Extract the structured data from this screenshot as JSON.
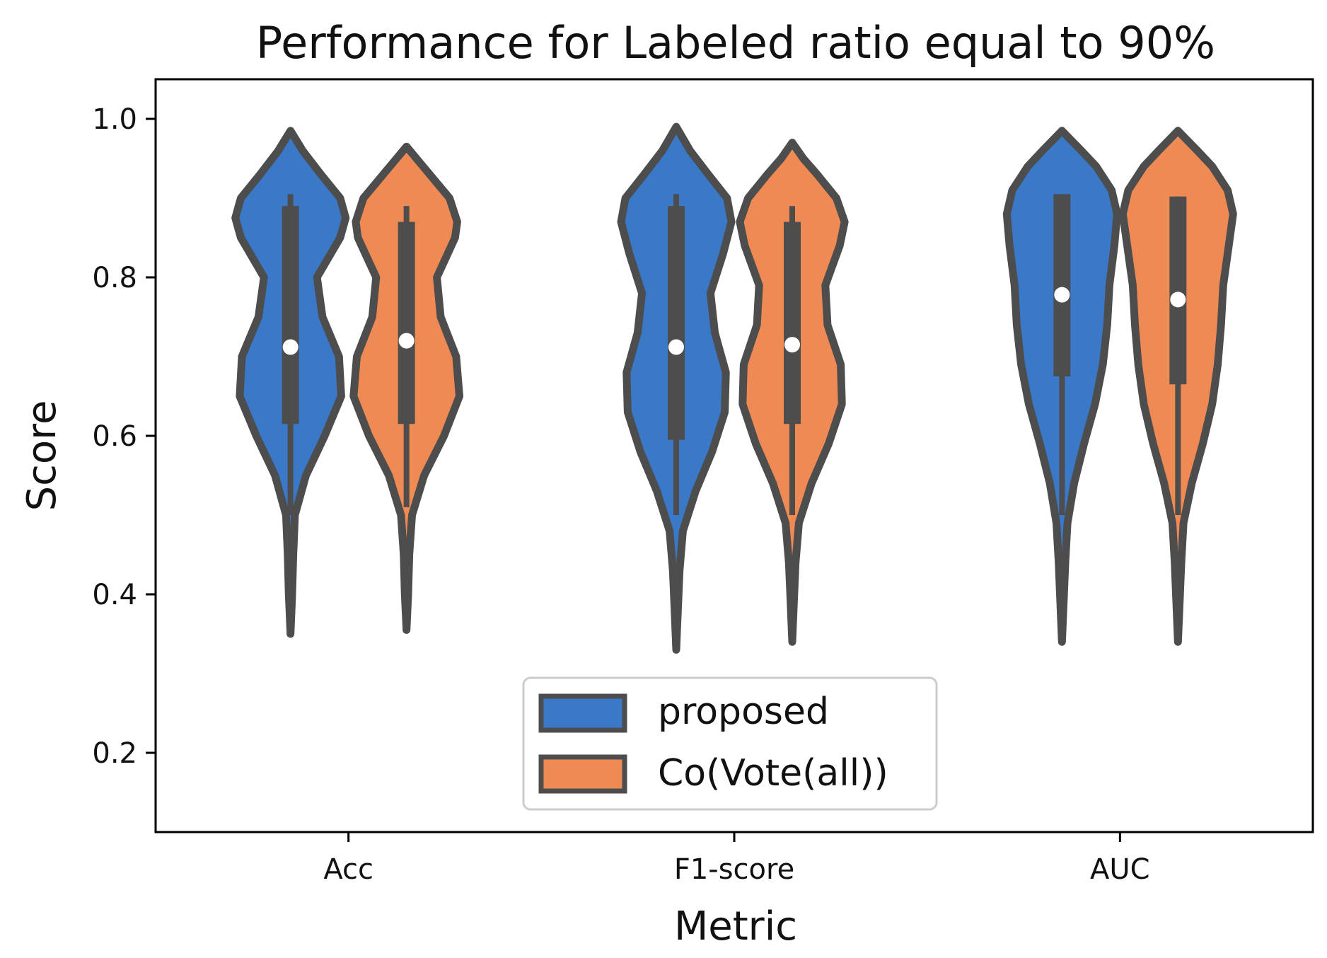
{
  "chart_data": {
    "type": "violin",
    "title": "Performance for Labeled ratio equal to 90%",
    "xlabel": "Metric",
    "ylabel": "Score",
    "categories": [
      "Acc",
      "F1-score",
      "AUC"
    ],
    "ylim": [
      0.1,
      1.05
    ],
    "yticks": [
      0.2,
      0.4,
      0.6,
      0.8,
      1.0
    ],
    "ytick_labels": [
      "0.2",
      "0.4",
      "0.6",
      "0.8",
      "1.0"
    ],
    "legend": {
      "position": "lower center"
    },
    "series": [
      {
        "name": "proposed",
        "color": "#3a78c8",
        "stats": [
          {
            "min": 0.35,
            "max": 0.985,
            "q1": 0.615,
            "median": 0.712,
            "q3": 0.89,
            "whisker_low": 0.5,
            "whisker_high": 0.905,
            "density": [
              [
                0.35,
                0.0
              ],
              [
                0.4,
                0.03
              ],
              [
                0.45,
                0.05
              ],
              [
                0.5,
                0.08
              ],
              [
                0.55,
                0.28
              ],
              [
                0.6,
                0.62
              ],
              [
                0.65,
                0.92
              ],
              [
                0.7,
                0.88
              ],
              [
                0.75,
                0.58
              ],
              [
                0.8,
                0.48
              ],
              [
                0.85,
                0.9
              ],
              [
                0.875,
                1.0
              ],
              [
                0.9,
                0.9
              ],
              [
                0.93,
                0.55
              ],
              [
                0.96,
                0.22
              ],
              [
                0.985,
                0.0
              ]
            ]
          },
          {
            "min": 0.33,
            "max": 0.99,
            "q1": 0.595,
            "median": 0.712,
            "q3": 0.89,
            "whisker_low": 0.5,
            "whisker_high": 0.905,
            "density": [
              [
                0.33,
                0.0
              ],
              [
                0.38,
                0.03
              ],
              [
                0.43,
                0.06
              ],
              [
                0.48,
                0.12
              ],
              [
                0.53,
                0.35
              ],
              [
                0.58,
                0.65
              ],
              [
                0.63,
                0.88
              ],
              [
                0.68,
                0.9
              ],
              [
                0.73,
                0.7
              ],
              [
                0.78,
                0.62
              ],
              [
                0.83,
                0.85
              ],
              [
                0.87,
                1.0
              ],
              [
                0.9,
                0.92
              ],
              [
                0.93,
                0.58
              ],
              [
                0.96,
                0.25
              ],
              [
                0.99,
                0.0
              ]
            ]
          },
          {
            "min": 0.34,
            "max": 0.985,
            "q1": 0.675,
            "median": 0.778,
            "q3": 0.905,
            "whisker_low": 0.5,
            "whisker_high": 0.905,
            "density": [
              [
                0.34,
                0.0
              ],
              [
                0.39,
                0.03
              ],
              [
                0.44,
                0.06
              ],
              [
                0.49,
                0.1
              ],
              [
                0.54,
                0.22
              ],
              [
                0.59,
                0.4
              ],
              [
                0.64,
                0.6
              ],
              [
                0.69,
                0.74
              ],
              [
                0.74,
                0.82
              ],
              [
                0.79,
                0.86
              ],
              [
                0.84,
                0.95
              ],
              [
                0.88,
                1.0
              ],
              [
                0.91,
                0.9
              ],
              [
                0.94,
                0.62
              ],
              [
                0.96,
                0.35
              ],
              [
                0.985,
                0.0
              ]
            ]
          }
        ]
      },
      {
        "name": "Co(Vote(all))",
        "color": "#ef8a55",
        "stats": [
          {
            "min": 0.355,
            "max": 0.965,
            "q1": 0.615,
            "median": 0.72,
            "q3": 0.87,
            "whisker_low": 0.51,
            "whisker_high": 0.89,
            "density": [
              [
                0.355,
                0.0
              ],
              [
                0.4,
                0.03
              ],
              [
                0.45,
                0.05
              ],
              [
                0.5,
                0.1
              ],
              [
                0.55,
                0.32
              ],
              [
                0.6,
                0.68
              ],
              [
                0.65,
                0.96
              ],
              [
                0.7,
                0.9
              ],
              [
                0.75,
                0.62
              ],
              [
                0.8,
                0.55
              ],
              [
                0.85,
                0.88
              ],
              [
                0.87,
                0.92
              ],
              [
                0.9,
                0.78
              ],
              [
                0.93,
                0.42
              ],
              [
                0.95,
                0.18
              ],
              [
                0.965,
                0.0
              ]
            ]
          },
          {
            "min": 0.34,
            "max": 0.97,
            "q1": 0.615,
            "median": 0.715,
            "q3": 0.87,
            "whisker_low": 0.5,
            "whisker_high": 0.89,
            "density": [
              [
                0.34,
                0.0
              ],
              [
                0.39,
                0.03
              ],
              [
                0.44,
                0.06
              ],
              [
                0.49,
                0.12
              ],
              [
                0.54,
                0.35
              ],
              [
                0.59,
                0.66
              ],
              [
                0.64,
                0.9
              ],
              [
                0.69,
                0.88
              ],
              [
                0.74,
                0.64
              ],
              [
                0.79,
                0.6
              ],
              [
                0.84,
                0.86
              ],
              [
                0.87,
                0.95
              ],
              [
                0.9,
                0.8
              ],
              [
                0.93,
                0.45
              ],
              [
                0.95,
                0.2
              ],
              [
                0.97,
                0.0
              ]
            ]
          },
          {
            "min": 0.34,
            "max": 0.985,
            "q1": 0.665,
            "median": 0.772,
            "q3": 0.902,
            "whisker_low": 0.5,
            "whisker_high": 0.902,
            "density": [
              [
                0.34,
                0.0
              ],
              [
                0.39,
                0.03
              ],
              [
                0.44,
                0.06
              ],
              [
                0.49,
                0.1
              ],
              [
                0.54,
                0.25
              ],
              [
                0.59,
                0.45
              ],
              [
                0.64,
                0.62
              ],
              [
                0.69,
                0.72
              ],
              [
                0.74,
                0.78
              ],
              [
                0.79,
                0.82
              ],
              [
                0.84,
                0.92
              ],
              [
                0.88,
                1.0
              ],
              [
                0.91,
                0.9
              ],
              [
                0.94,
                0.62
              ],
              [
                0.96,
                0.35
              ],
              [
                0.985,
                0.0
              ]
            ]
          }
        ]
      }
    ]
  }
}
